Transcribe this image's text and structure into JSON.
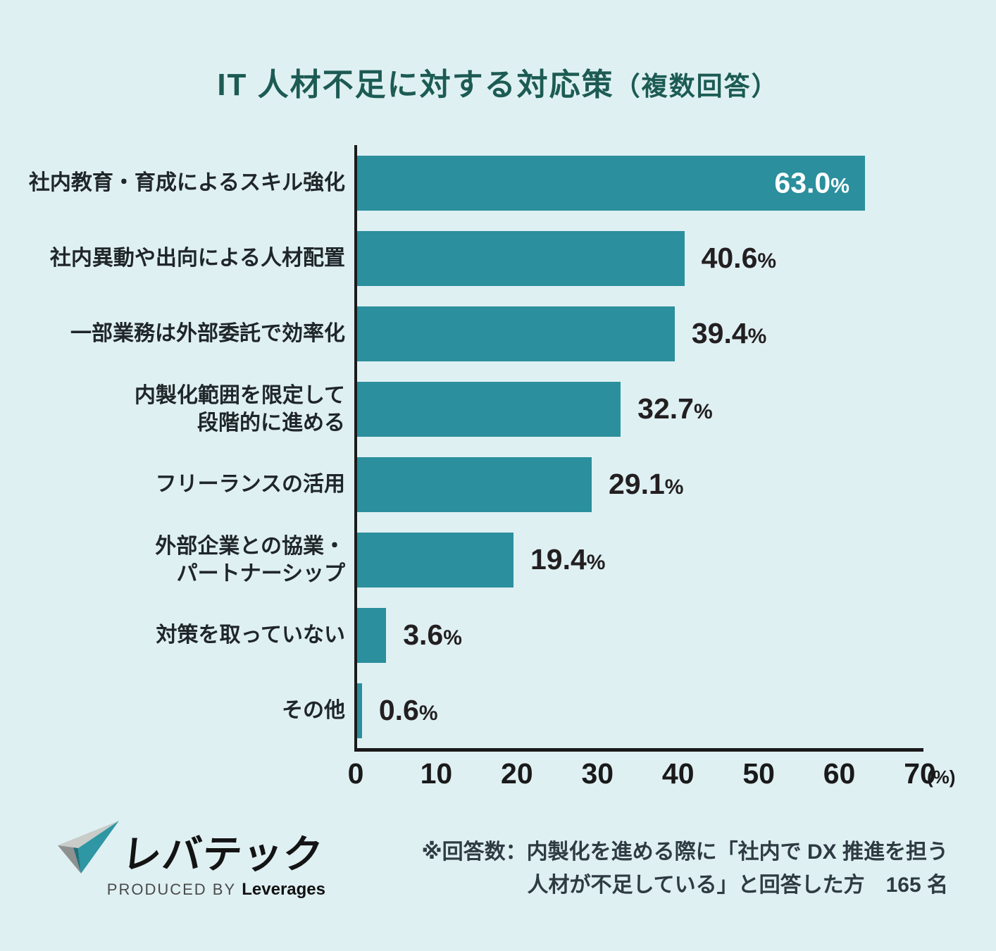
{
  "page": {
    "background_color": "#DFF0F3"
  },
  "title": {
    "main": "IT 人材不足に対する対応策",
    "sub": "（複数回答）"
  },
  "chart_data": {
    "type": "bar",
    "orientation": "horizontal",
    "title": "IT 人材不足に対する対応策（複数回答）",
    "categories": [
      "社内教育・育成によるスキル強化",
      "社内異動や出向による人材配置",
      "一部業務は外部委託で効率化",
      "内製化範囲を限定して\n段階的に進める",
      "フリーランスの活用",
      "外部企業との協業・\nパートナーシップ",
      "対策を取っていない",
      "その他"
    ],
    "values": [
      63.0,
      40.6,
      39.4,
      32.7,
      29.1,
      19.4,
      3.6,
      0.6
    ],
    "value_labels": [
      "63.0%",
      "40.6%",
      "39.4%",
      "32.7%",
      "29.1%",
      "19.4%",
      "3.6%",
      "0.6%"
    ],
    "xlabel": "",
    "ylabel": "",
    "xlim": [
      0,
      70
    ],
    "x_ticks": [
      "0",
      "10",
      "20",
      "30",
      "40",
      "50",
      "60",
      "70"
    ],
    "x_unit": "(%)",
    "bar_color": "#2B8F9D",
    "grid": false,
    "legend": false,
    "inside_label_threshold": 50
  },
  "colors": {
    "background": "#DFF0F3",
    "bar": "#2B8F9D",
    "title": "#1C5B53",
    "axis": "#1A1A1A",
    "value_label_dark": "#231F20",
    "value_label_light": "#FFFFFF",
    "logo_teal": "#2F96A3",
    "logo_dark_teal": "#20707B",
    "logo_light_gray": "#C9CCC9",
    "logo_gray": "#8D918F"
  },
  "footer": {
    "logo_name": "レバテック",
    "logo_produced_by": "PRODUCED BY",
    "logo_company": "Leverages",
    "note_line1": "※回答数：内製化を進める際に「社内で DX 推進を担う",
    "note_line2": "人材が不足している」と回答した方　165 名"
  }
}
